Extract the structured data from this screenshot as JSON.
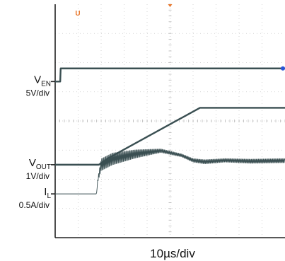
{
  "chart_data": {
    "type": "line",
    "title": "",
    "x_label": "10µs/div",
    "grid": true,
    "divisions": {
      "x": 10,
      "y": 8
    },
    "markers": {
      "trigger_marker": "U",
      "trigger_color": "#e8762a",
      "right_marker_color": "#2a55d6"
    },
    "channels": [
      {
        "name_main": "V",
        "name_sub": "EN",
        "scale": "5V/div",
        "color": "#3a4f52"
      },
      {
        "name_main": "V",
        "name_sub": "OUT",
        "scale": "1V/div",
        "color": "#3a4f52"
      },
      {
        "name_main": "I",
        "name_sub": "L",
        "scale": "0.5A/div",
        "color": "#3a4f52"
      }
    ],
    "series": [
      {
        "channel": 0,
        "kind": "trace",
        "x": [
          0,
          0.22,
          0.24,
          10
        ],
        "y": [
          5.35,
          5.35,
          5.8,
          5.8
        ]
      },
      {
        "channel": 1,
        "kind": "trace",
        "x": [
          0,
          1.9,
          2.3,
          6.3,
          10
        ],
        "y": [
          2.5,
          2.5,
          2.72,
          4.45,
          4.45
        ]
      },
      {
        "channel": 2,
        "kind": "ripple",
        "x": [
          0,
          1.8,
          1.85,
          2.0,
          2.5,
          3.5,
          4.6,
          5.5,
          6.0,
          6.5,
          7.4,
          8.5,
          10
        ],
        "y": [
          1.5,
          1.5,
          1.95,
          2.5,
          2.7,
          2.87,
          2.98,
          2.82,
          2.65,
          2.6,
          2.65,
          2.62,
          2.64
        ],
        "ripple_amplitude": [
          0,
          0,
          0.05,
          0.2,
          0.2,
          0.14,
          0.06,
          0.05,
          0.06,
          0.07,
          0.06,
          0.07,
          0.07
        ]
      }
    ]
  }
}
